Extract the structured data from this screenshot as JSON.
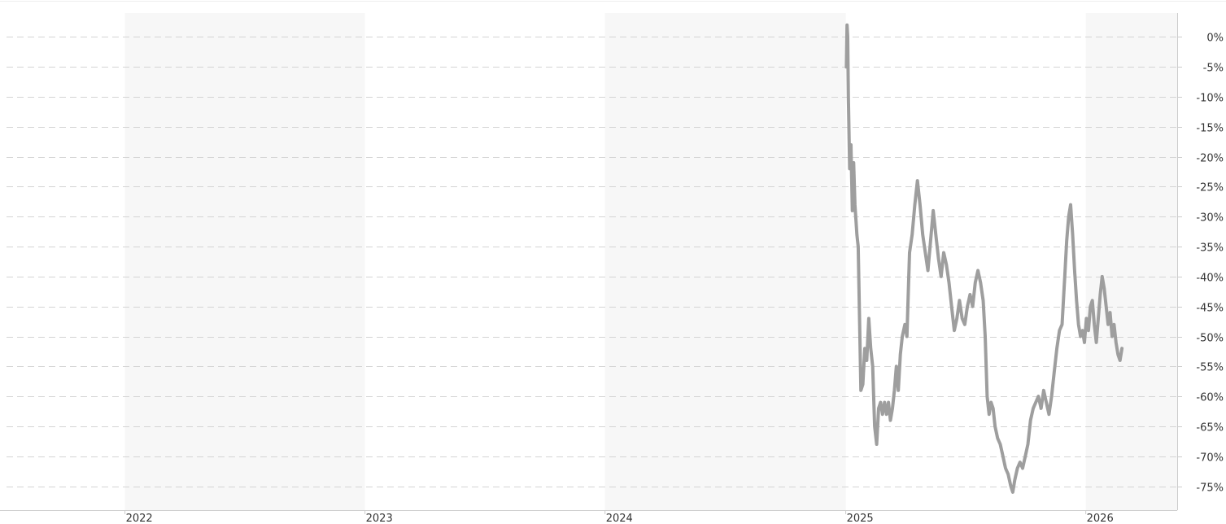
{
  "chart_data": {
    "type": "line",
    "title": "",
    "xlabel": "",
    "ylabel": "",
    "x_ticks": [
      "2022",
      "2023",
      "2024",
      "2025",
      "2026"
    ],
    "y_ticks": [
      "0%",
      "-5%",
      "-10%",
      "-15%",
      "-20%",
      "-25%",
      "-30%",
      "-35%",
      "-40%",
      "-45%",
      "-50%",
      "-55%",
      "-60%",
      "-65%",
      "-70%",
      "-75%"
    ],
    "xlim": [
      "2021-06-25",
      "2026-05-20"
    ],
    "ylim": [
      -79,
      4
    ],
    "y_unit": "%",
    "grid": true,
    "legend": "none",
    "alternating_year_bands": true,
    "series": [
      {
        "color": "#9e9e9e",
        "points": [
          [
            "2025-01-02",
            -5
          ],
          [
            "2025-01-03",
            2
          ],
          [
            "2025-01-04",
            0
          ],
          [
            "2025-01-05",
            -10
          ],
          [
            "2025-01-07",
            -22
          ],
          [
            "2025-01-09",
            -18
          ],
          [
            "2025-01-11",
            -29
          ],
          [
            "2025-01-13",
            -21
          ],
          [
            "2025-01-15",
            -28
          ],
          [
            "2025-01-18",
            -33
          ],
          [
            "2025-01-20",
            -35
          ],
          [
            "2025-01-24",
            -59
          ],
          [
            "2025-01-27",
            -58
          ],
          [
            "2025-01-30",
            -52
          ],
          [
            "2025-02-02",
            -54
          ],
          [
            "2025-02-05",
            -47
          ],
          [
            "2025-02-08",
            -52
          ],
          [
            "2025-02-11",
            -55
          ],
          [
            "2025-02-14",
            -65
          ],
          [
            "2025-02-17",
            -68
          ],
          [
            "2025-02-20",
            -62
          ],
          [
            "2025-02-23",
            -61
          ],
          [
            "2025-02-26",
            -63
          ],
          [
            "2025-03-01",
            -61
          ],
          [
            "2025-03-04",
            -63
          ],
          [
            "2025-03-07",
            -61
          ],
          [
            "2025-03-10",
            -64
          ],
          [
            "2025-03-13",
            -62
          ],
          [
            "2025-03-16",
            -59
          ],
          [
            "2025-03-19",
            -55
          ],
          [
            "2025-03-22",
            -59
          ],
          [
            "2025-03-25",
            -53
          ],
          [
            "2025-03-28",
            -50
          ],
          [
            "2025-04-01",
            -48
          ],
          [
            "2025-04-04",
            -50
          ],
          [
            "2025-04-08",
            -36
          ],
          [
            "2025-04-12",
            -33
          ],
          [
            "2025-04-16",
            -28
          ],
          [
            "2025-04-20",
            -24
          ],
          [
            "2025-04-24",
            -28
          ],
          [
            "2025-04-28",
            -33
          ],
          [
            "2025-05-02",
            -36
          ],
          [
            "2025-05-06",
            -39
          ],
          [
            "2025-05-10",
            -34
          ],
          [
            "2025-05-14",
            -29
          ],
          [
            "2025-05-18",
            -33
          ],
          [
            "2025-05-22",
            -37
          ],
          [
            "2025-05-26",
            -40
          ],
          [
            "2025-05-30",
            -36
          ],
          [
            "2025-06-03",
            -38
          ],
          [
            "2025-06-07",
            -41
          ],
          [
            "2025-06-11",
            -45
          ],
          [
            "2025-06-15",
            -49
          ],
          [
            "2025-06-19",
            -47
          ],
          [
            "2025-06-23",
            -44
          ],
          [
            "2025-06-27",
            -47
          ],
          [
            "2025-07-01",
            -48
          ],
          [
            "2025-07-05",
            -45
          ],
          [
            "2025-07-09",
            -43
          ],
          [
            "2025-07-13",
            -45
          ],
          [
            "2025-07-17",
            -41
          ],
          [
            "2025-07-21",
            -39
          ],
          [
            "2025-07-25",
            -41
          ],
          [
            "2025-07-29",
            -44
          ],
          [
            "2025-08-01",
            -50
          ],
          [
            "2025-08-04",
            -60
          ],
          [
            "2025-08-07",
            -63
          ],
          [
            "2025-08-10",
            -61
          ],
          [
            "2025-08-13",
            -62
          ],
          [
            "2025-08-16",
            -65
          ],
          [
            "2025-08-20",
            -67
          ],
          [
            "2025-08-24",
            -68
          ],
          [
            "2025-08-28",
            -70
          ],
          [
            "2025-09-01",
            -72
          ],
          [
            "2025-09-05",
            -73
          ],
          [
            "2025-09-09",
            -75
          ],
          [
            "2025-09-12",
            -76
          ],
          [
            "2025-09-15",
            -74
          ],
          [
            "2025-09-19",
            -72
          ],
          [
            "2025-09-23",
            -71
          ],
          [
            "2025-09-27",
            -72
          ],
          [
            "2025-10-01",
            -70
          ],
          [
            "2025-10-05",
            -68
          ],
          [
            "2025-10-09",
            -64
          ],
          [
            "2025-10-13",
            -62
          ],
          [
            "2025-10-17",
            -61
          ],
          [
            "2025-10-21",
            -60
          ],
          [
            "2025-10-25",
            -62
          ],
          [
            "2025-10-29",
            -59
          ],
          [
            "2025-11-02",
            -61
          ],
          [
            "2025-11-06",
            -63
          ],
          [
            "2025-11-10",
            -60
          ],
          [
            "2025-11-14",
            -56
          ],
          [
            "2025-11-18",
            -52
          ],
          [
            "2025-11-22",
            -49
          ],
          [
            "2025-11-26",
            -48
          ],
          [
            "2025-11-30",
            -40
          ],
          [
            "2025-12-03",
            -34
          ],
          [
            "2025-12-06",
            -30
          ],
          [
            "2025-12-09",
            -28
          ],
          [
            "2025-12-12",
            -33
          ],
          [
            "2025-12-15",
            -39
          ],
          [
            "2025-12-18",
            -44
          ],
          [
            "2025-12-21",
            -48
          ],
          [
            "2025-12-24",
            -50
          ],
          [
            "2025-12-27",
            -49
          ],
          [
            "2025-12-30",
            -51
          ],
          [
            "2026-01-02",
            -47
          ],
          [
            "2026-01-05",
            -49
          ],
          [
            "2026-01-08",
            -45
          ],
          [
            "2026-01-11",
            -44
          ],
          [
            "2026-01-14",
            -48
          ],
          [
            "2026-01-17",
            -51
          ],
          [
            "2026-01-20",
            -47
          ],
          [
            "2026-01-23",
            -43
          ],
          [
            "2026-01-26",
            -40
          ],
          [
            "2026-01-29",
            -42
          ],
          [
            "2026-02-01",
            -45
          ],
          [
            "2026-02-04",
            -48
          ],
          [
            "2026-02-07",
            -46
          ],
          [
            "2026-02-10",
            -50
          ],
          [
            "2026-02-13",
            -48
          ],
          [
            "2026-02-16",
            -51
          ],
          [
            "2026-02-19",
            -53
          ],
          [
            "2026-02-22",
            -54
          ],
          [
            "2026-02-25",
            -52
          ]
        ]
      }
    ]
  }
}
